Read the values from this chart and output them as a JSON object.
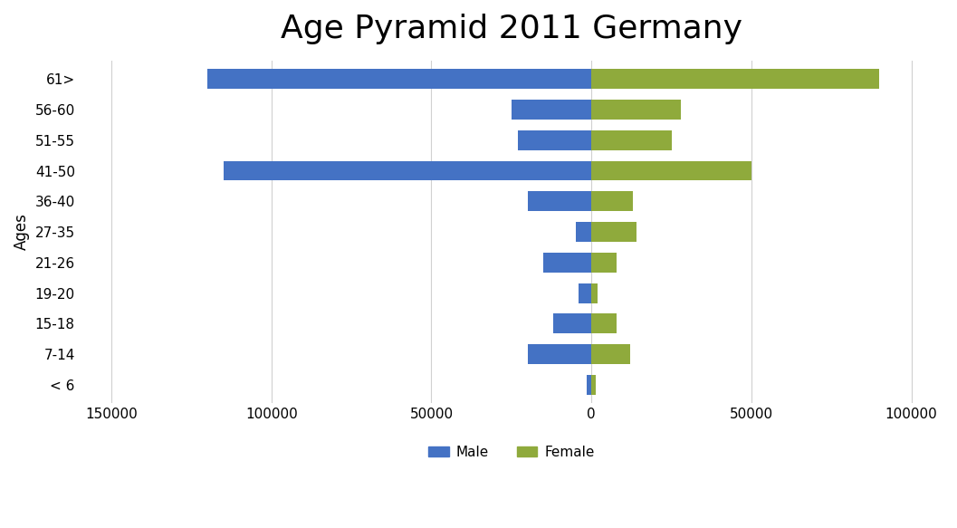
{
  "title": "Age Pyramid 2011 Germany",
  "age_groups": [
    "< 6",
    "7-14",
    "15-18",
    "19-20",
    "21-26",
    "27-35",
    "36-40",
    "41-50",
    "51-55",
    "56-60",
    "61>"
  ],
  "male_values": [
    -1500,
    -20000,
    -12000,
    -4000,
    -15000,
    -5000,
    -20000,
    -115000,
    -23000,
    -25000,
    -120000
  ],
  "female_values": [
    1500,
    12000,
    8000,
    2000,
    8000,
    14000,
    13000,
    50000,
    25000,
    28000,
    90000
  ],
  "male_color": "#4472C4",
  "female_color": "#8faa3c",
  "ylabel": "Ages",
  "xlim": [
    -160000,
    110000
  ],
  "xticks": [
    -150000,
    -100000,
    -50000,
    0,
    50000,
    100000
  ],
  "xtick_labels": [
    "150000",
    "100000",
    "50000",
    "0",
    "50000",
    "100000"
  ],
  "background_color": "#ffffff",
  "grid_color": "#d0d0d0",
  "title_fontsize": 26,
  "axis_fontsize": 12,
  "tick_fontsize": 11,
  "bar_height": 0.65
}
